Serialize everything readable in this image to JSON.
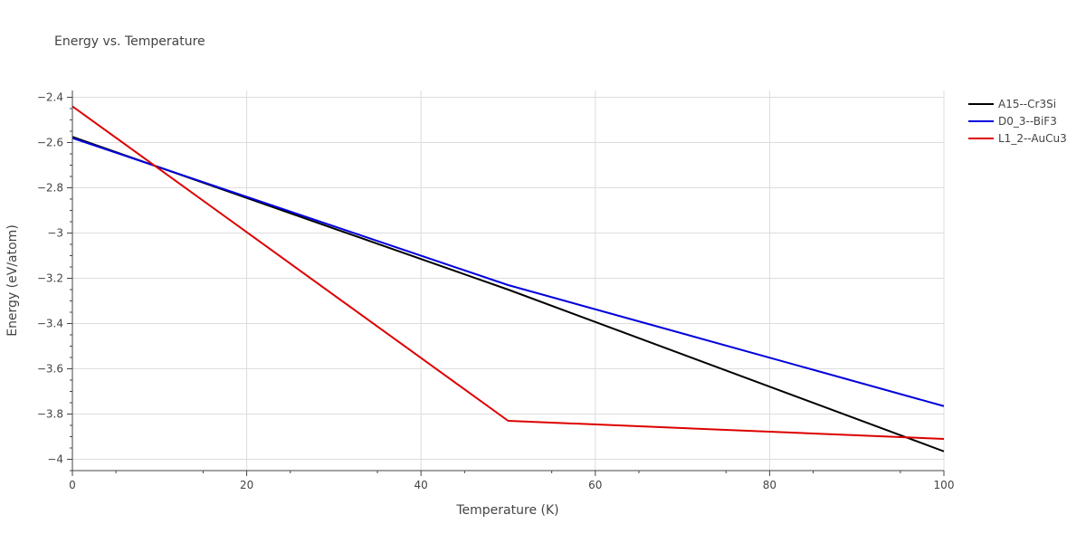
{
  "chart_data": {
    "type": "line",
    "title": "Energy vs. Temperature",
    "xlabel": "Temperature (K)",
    "ylabel": "Energy (eV/atom)",
    "xlim": [
      0,
      100
    ],
    "ylim": [
      -4.05,
      -2.37
    ],
    "x_ticks": [
      0,
      20,
      40,
      60,
      80,
      100
    ],
    "x_tick_labels": [
      "0",
      "20",
      "40",
      "60",
      "80",
      "100"
    ],
    "y_ticks": [
      -2.4,
      -2.6,
      -2.8,
      -3.0,
      -3.2,
      -3.4,
      -3.6,
      -3.8,
      -4.0
    ],
    "y_tick_labels": [
      "−2.4",
      "−2.6",
      "−2.8",
      "−3",
      "−3.2",
      "−3.4",
      "−3.6",
      "−3.8",
      "−4"
    ],
    "grid": true,
    "legend_position": "top-right",
    "series": [
      {
        "name": "A15--Cr3Si",
        "color": "#000000",
        "x": [
          0,
          50,
          100
        ],
        "y": [
          -2.575,
          -3.25,
          -3.965
        ]
      },
      {
        "name": "D0_3--BiF3",
        "color": "#0000dd",
        "x": [
          0,
          50,
          100
        ],
        "y": [
          -2.58,
          -3.23,
          -3.765
        ]
      },
      {
        "name": "L1_2--AuCu3",
        "color": "#dd0000",
        "x": [
          0,
          50,
          100
        ],
        "y": [
          -2.44,
          -3.83,
          -3.91
        ]
      }
    ]
  }
}
